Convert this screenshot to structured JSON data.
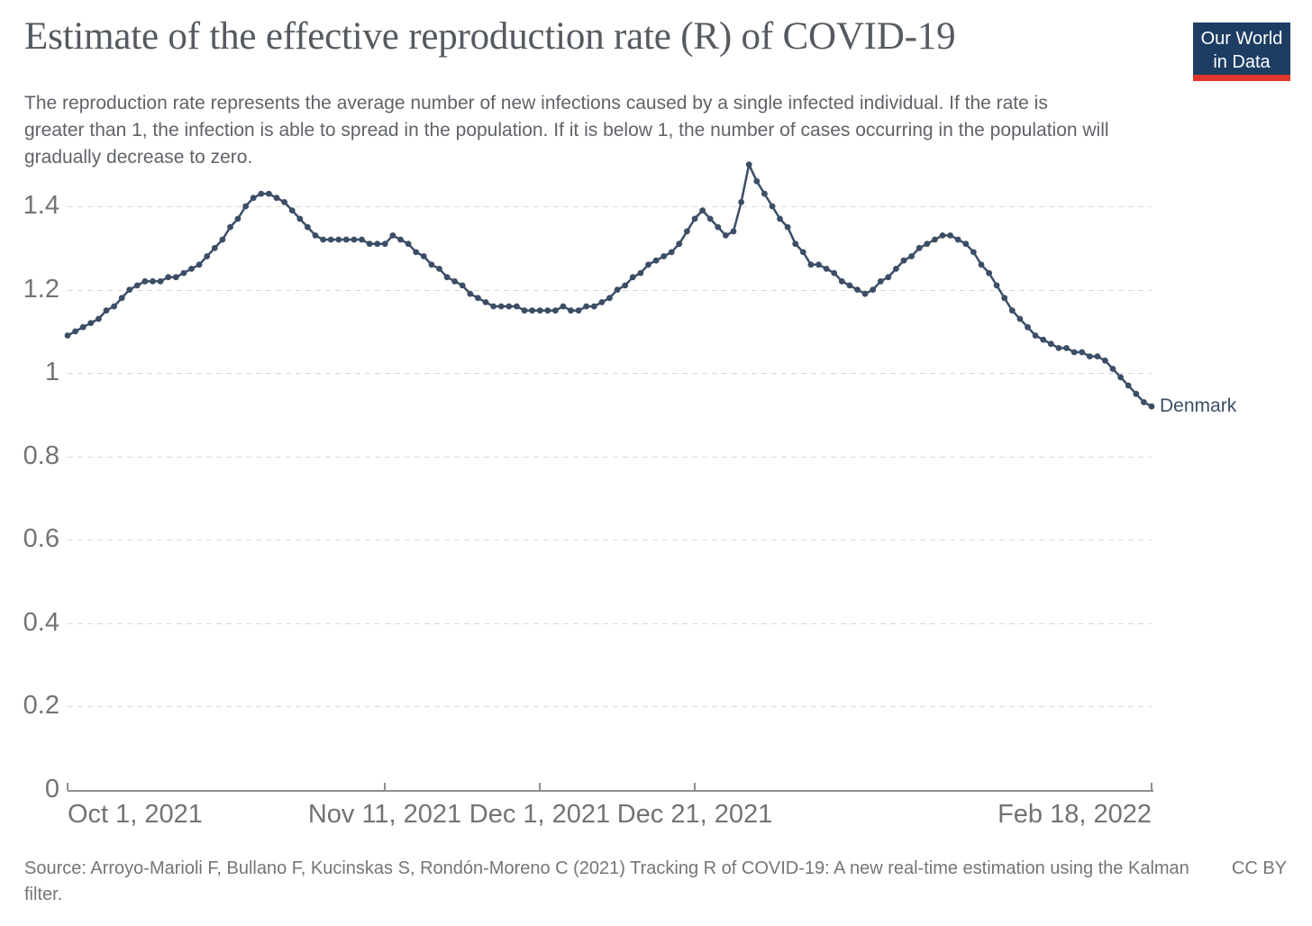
{
  "header": {
    "title": "Estimate of the effective reproduction rate (R) of COVID-19",
    "subtitle": "The reproduction rate represents the average number of new infections caused by a single infected individual. If the rate is greater than 1, the infection is able to spread in the population. If it is below 1, the number of cases occurring in the population will gradually decrease to zero."
  },
  "logo": {
    "line1": "Our World",
    "line2": "in Data"
  },
  "colors": {
    "line": "#3C4E66",
    "title_text": "#555A60",
    "subtitle_text": "#5F6368",
    "axis_text": "#737373",
    "gridline": "#D9D9D9",
    "axis_line": "#8F8F8F",
    "logo_bg": "#1D3D63",
    "logo_bar": "#E0352B",
    "footer_text": "#757575"
  },
  "chart_data": {
    "type": "line",
    "title": "Estimate of the effective reproduction rate (R) of COVID-19",
    "entity": "Denmark",
    "frequency": "daily",
    "x_start": "Oct 1, 2021",
    "x_end": "Feb 18, 2022",
    "x_tick_labels": [
      {
        "day": 0,
        "label": "Oct 1, 2021"
      },
      {
        "day": 41,
        "label": "Nov 11, 2021"
      },
      {
        "day": 61,
        "label": "Dec 1, 2021"
      },
      {
        "day": 81,
        "label": "Dec 21, 2021"
      },
      {
        "day": 140,
        "label": "Feb 18, 2022"
      }
    ],
    "y_ticks": [
      {
        "v": 0,
        "label": "0"
      },
      {
        "v": 0.2,
        "label": "0.2"
      },
      {
        "v": 0.4,
        "label": "0.4"
      },
      {
        "v": 0.6,
        "label": "0.6"
      },
      {
        "v": 0.8,
        "label": "0.8"
      },
      {
        "v": 1,
        "label": "1"
      },
      {
        "v": 1.2,
        "label": "1.2"
      },
      {
        "v": 1.4,
        "label": "1.4"
      }
    ],
    "ylim": [
      0,
      1.52
    ],
    "grid": "horizontal-dashed",
    "legend_position": "line-end-label",
    "series": [
      {
        "name": "Denmark",
        "color": "#3C4E66",
        "start_date": "2021-10-01",
        "end_date": "2022-02-18",
        "values": [
          1.09,
          1.1,
          1.11,
          1.12,
          1.13,
          1.15,
          1.16,
          1.18,
          1.2,
          1.21,
          1.22,
          1.22,
          1.22,
          1.23,
          1.23,
          1.24,
          1.25,
          1.26,
          1.28,
          1.3,
          1.32,
          1.35,
          1.37,
          1.4,
          1.42,
          1.43,
          1.43,
          1.42,
          1.41,
          1.39,
          1.37,
          1.35,
          1.33,
          1.32,
          1.32,
          1.32,
          1.32,
          1.32,
          1.32,
          1.31,
          1.31,
          1.31,
          1.33,
          1.32,
          1.31,
          1.29,
          1.28,
          1.26,
          1.25,
          1.23,
          1.22,
          1.21,
          1.19,
          1.18,
          1.17,
          1.16,
          1.16,
          1.16,
          1.16,
          1.15,
          1.15,
          1.15,
          1.15,
          1.15,
          1.16,
          1.15,
          1.15,
          1.16,
          1.16,
          1.17,
          1.18,
          1.2,
          1.21,
          1.23,
          1.24,
          1.26,
          1.27,
          1.28,
          1.29,
          1.31,
          1.34,
          1.37,
          1.39,
          1.37,
          1.35,
          1.33,
          1.34,
          1.41,
          1.5,
          1.46,
          1.43,
          1.4,
          1.37,
          1.35,
          1.31,
          1.29,
          1.26,
          1.26,
          1.25,
          1.24,
          1.22,
          1.21,
          1.2,
          1.19,
          1.2,
          1.22,
          1.23,
          1.25,
          1.27,
          1.28,
          1.3,
          1.31,
          1.32,
          1.33,
          1.33,
          1.32,
          1.31,
          1.29,
          1.26,
          1.24,
          1.21,
          1.18,
          1.15,
          1.13,
          1.11,
          1.09,
          1.08,
          1.07,
          1.06,
          1.06,
          1.05,
          1.05,
          1.04,
          1.04,
          1.03,
          1.01,
          0.99,
          0.97,
          0.95,
          0.93,
          0.92
        ]
      }
    ]
  },
  "footer": {
    "source": "Source: Arroyo-Marioli F, Bullano F, Kucinskas S, Rondón-Moreno C (2021) Tracking R of COVID-19: A new real-time estimation using the Kalman filter.",
    "license": "CC BY"
  }
}
